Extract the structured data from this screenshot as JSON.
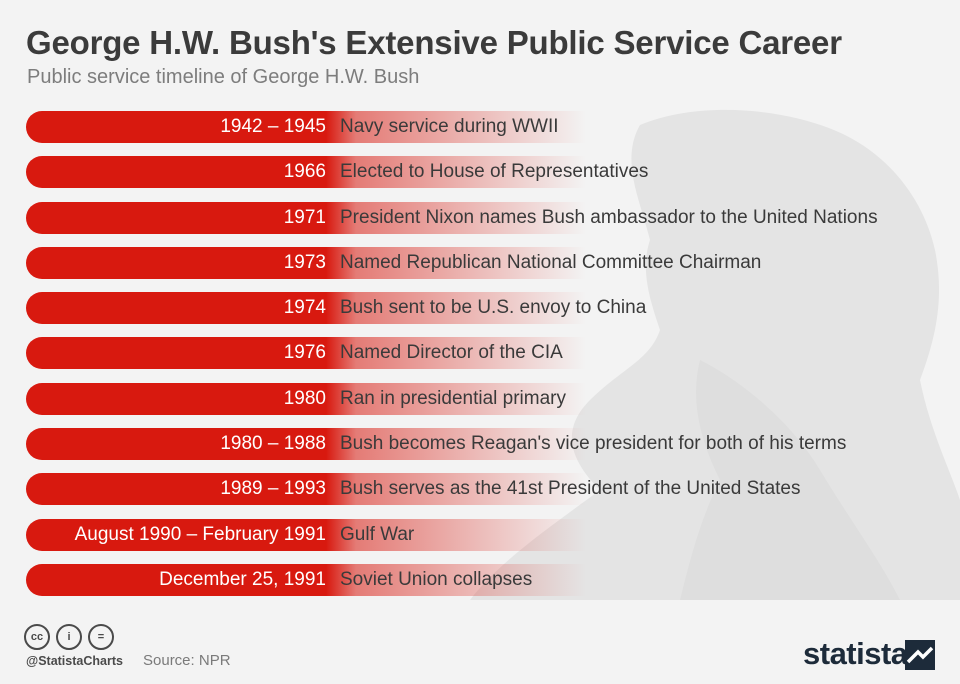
{
  "header": {
    "title": "George H.W. Bush's Extensive Public Service Career",
    "subtitle": "Public service timeline of George H.W. Bush"
  },
  "chart_data": {
    "type": "table",
    "title": "George H.W. Bush's Extensive Public Service Career",
    "subtitle": "Public service timeline of George H.W. Bush",
    "columns": [
      "date",
      "event"
    ],
    "rows": [
      {
        "date": "1942 – 1945",
        "event": "Navy service during WWII"
      },
      {
        "date": "1966",
        "event": "Elected to House of Representatives"
      },
      {
        "date": "1971",
        "event": "President Nixon names Bush ambassador to the United Nations"
      },
      {
        "date": "1973",
        "event": "Named Republican National Committee Chairman"
      },
      {
        "date": "1974",
        "event": "Bush sent to be U.S. envoy to China"
      },
      {
        "date": "1976",
        "event": "Named Director of the CIA"
      },
      {
        "date": "1980",
        "event": "Ran in presidential primary"
      },
      {
        "date": "1980 – 1988",
        "event": "Bush becomes Reagan's vice president for both of his terms"
      },
      {
        "date": "1989 – 1993",
        "event": "Bush serves as the 41st President of the United States"
      },
      {
        "date": "August 1990 – February 1991",
        "event": "Gulf War"
      },
      {
        "date": "December 25, 1991",
        "event": "Soviet Union collapses"
      }
    ],
    "bar_color": "#d8190f"
  },
  "footer": {
    "handle": "@StatistaCharts",
    "source": "Source: NPR",
    "brand": "statista",
    "license_icons": [
      "cc-icon",
      "by-icon",
      "nd-icon"
    ],
    "license_labels": [
      "cc",
      "i",
      "="
    ]
  }
}
